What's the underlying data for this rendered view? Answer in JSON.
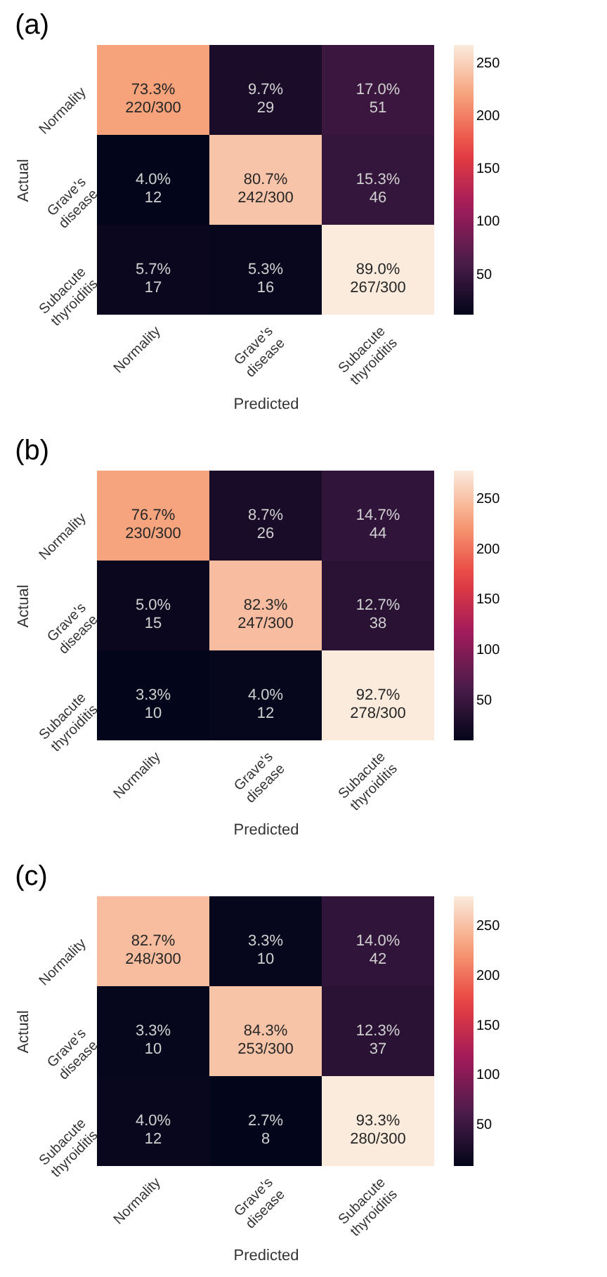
{
  "chart_data": [
    {
      "type": "heatmap",
      "title": "(a)",
      "xlabel": "Predicted",
      "ylabel": "Actual",
      "categories": [
        "Normality",
        "Grave's disease",
        "Subacute thyroiditis"
      ],
      "y_categories": [
        "Normality",
        "Grave's disease",
        "Subacute thyroiditis"
      ],
      "cells": [
        [
          220,
          29,
          51
        ],
        [
          12,
          242,
          46
        ],
        [
          17,
          16,
          267
        ]
      ],
      "cell_labels": [
        [
          "73.3%\n220/300",
          "9.7%\n29",
          "17.0%\n51"
        ],
        [
          "4.0%\n12",
          "80.7%\n242/300",
          "15.3%\n46"
        ],
        [
          "5.7%\n17",
          "5.3%\n16",
          "89.0%\n267/300"
        ]
      ],
      "clim": [
        12,
        267
      ],
      "cticks": [
        50,
        100,
        150,
        200,
        250
      ]
    },
    {
      "type": "heatmap",
      "title": "(b)",
      "xlabel": "Predicted",
      "ylabel": "Actual",
      "categories": [
        "Normality",
        "Grave's disease",
        "Subacute thyroiditis"
      ],
      "y_categories": [
        "Normality",
        "Grave's disease",
        "Subacute thyroiditis"
      ],
      "cells": [
        [
          230,
          26,
          44
        ],
        [
          15,
          247,
          38
        ],
        [
          10,
          12,
          278
        ]
      ],
      "cell_labels": [
        [
          "76.7%\n230/300",
          "8.7%\n26",
          "14.7%\n44"
        ],
        [
          "5.0%\n15",
          "82.3%\n247/300",
          "12.7%\n38"
        ],
        [
          "3.3%\n10",
          "4.0%\n12",
          "92.7%\n278/300"
        ]
      ],
      "clim": [
        10,
        278
      ],
      "cticks": [
        50,
        100,
        150,
        200,
        250
      ]
    },
    {
      "type": "heatmap",
      "title": "(c)",
      "xlabel": "Predicted",
      "ylabel": "Actual",
      "categories": [
        "Normality",
        "Grave's disease",
        "Subacute thyroiditis"
      ],
      "y_categories": [
        "Normality",
        "Grave's disease",
        "Subacute thyroiditis"
      ],
      "cells": [
        [
          248,
          10,
          42
        ],
        [
          10,
          253,
          37
        ],
        [
          12,
          8,
          280
        ]
      ],
      "cell_labels": [
        [
          "82.7%\n248/300",
          "3.3%\n10",
          "14.0%\n42"
        ],
        [
          "3.3%\n10",
          "84.3%\n253/300",
          "12.3%\n37"
        ],
        [
          "4.0%\n12",
          "2.7%\n8",
          "93.3%\n280/300"
        ]
      ],
      "clim": [
        8,
        280
      ],
      "cticks": [
        50,
        100,
        150,
        200,
        250
      ]
    }
  ]
}
